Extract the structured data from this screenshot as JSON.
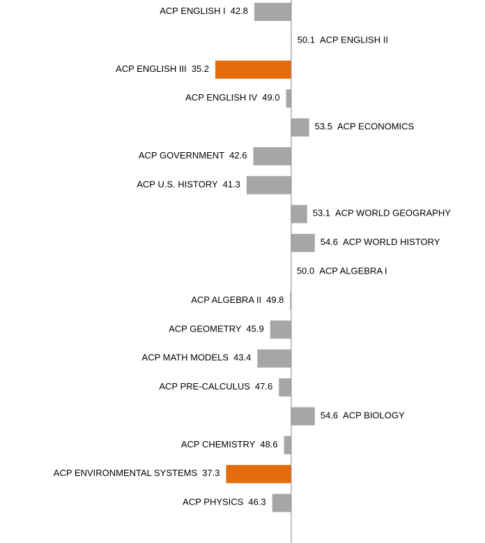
{
  "chart_data": {
    "type": "bar",
    "orientation": "horizontal",
    "categories": [
      "ACP ENGLISH I",
      "ACP ENGLISH II",
      "ACP ENGLISH III",
      "ACP ENGLISH IV",
      "ACP ECONOMICS",
      "ACP GOVERNMENT",
      "ACP U.S. HISTORY",
      "ACP WORLD GEOGRAPHY",
      "ACP WORLD HISTORY",
      "ACP ALGEBRA I",
      "ACP ALGEBRA II",
      "ACP GEOMETRY",
      "ACP MATH MODELS",
      "ACP PRE-CALCULUS",
      "ACP BIOLOGY",
      "ACP CHEMISTRY",
      "ACP ENVIRONMENTAL SYSTEMS",
      "ACP PHYSICS"
    ],
    "values": [
      42.8,
      50.1,
      35.2,
      49.0,
      53.5,
      42.6,
      41.3,
      53.1,
      54.6,
      50.0,
      49.8,
      45.9,
      43.4,
      47.6,
      54.6,
      48.6,
      37.3,
      46.3
    ],
    "value_labels": [
      "42.8",
      "50.1",
      "35.2",
      "49.0",
      "53.5",
      "42.6",
      "41.3",
      "53.1",
      "54.6",
      "50.0",
      "49.8",
      "45.9",
      "43.4",
      "47.6",
      "54.6",
      "48.6",
      "37.3",
      "46.3"
    ],
    "colors": [
      "#a6a6a6",
      "#a6a6a6",
      "#e46c0a",
      "#a6a6a6",
      "#a6a6a6",
      "#a6a6a6",
      "#a6a6a6",
      "#a6a6a6",
      "#a6a6a6",
      "#a6a6a6",
      "#a6a6a6",
      "#a6a6a6",
      "#a6a6a6",
      "#a6a6a6",
      "#a6a6a6",
      "#a6a6a6",
      "#e46c0a",
      "#a6a6a6"
    ],
    "baseline": 50,
    "xlim": [
      -6.8,
      87.8
    ]
  }
}
